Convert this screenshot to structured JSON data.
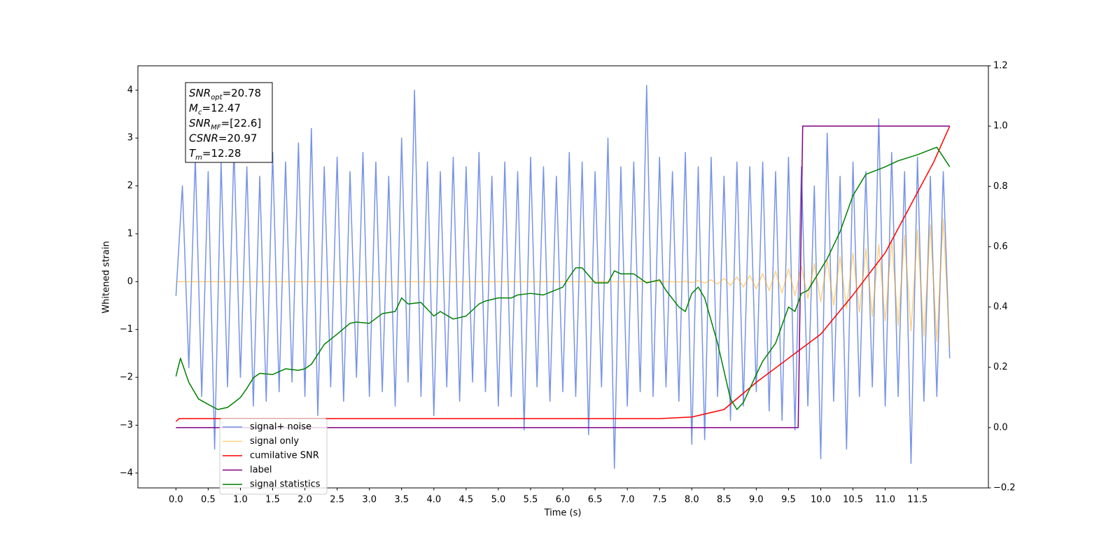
{
  "chart_data": {
    "type": "line",
    "xlabel": "Time (s)",
    "ylabel": "Whitened strain",
    "xlim": [
      -0.59,
      12.6
    ],
    "ylim": [
      -4.31,
      4.51
    ],
    "y2lim": [
      -0.2,
      1.2
    ],
    "xticks": [
      {
        "value": 0,
        "label": "0.0"
      },
      {
        "value": 0.5,
        "label": "0.5"
      },
      {
        "value": 1,
        "label": "1.0"
      },
      {
        "value": 1.5,
        "label": "1.5"
      },
      {
        "value": 2,
        "label": "2.0"
      },
      {
        "value": 2.5,
        "label": "2.5"
      },
      {
        "value": 3,
        "label": "3.0"
      },
      {
        "value": 3.5,
        "label": "3.5"
      },
      {
        "value": 4,
        "label": "4.0"
      },
      {
        "value": 4.5,
        "label": "4.5"
      },
      {
        "value": 5,
        "label": "5.0"
      },
      {
        "value": 5.5,
        "label": "5.5"
      },
      {
        "value": 6,
        "label": "6.0"
      },
      {
        "value": 6.5,
        "label": "6.5"
      },
      {
        "value": 7,
        "label": "7.0"
      },
      {
        "value": 7.5,
        "label": "7.5"
      },
      {
        "value": 8,
        "label": "8.0"
      },
      {
        "value": 8.5,
        "label": "8.5"
      },
      {
        "value": 9,
        "label": "9.0"
      },
      {
        "value": 9.5,
        "label": "9.5"
      },
      {
        "value": 10,
        "label": "10.0"
      },
      {
        "value": 10.5,
        "label": "10.5"
      },
      {
        "value": 11,
        "label": "11.0"
      },
      {
        "value": 11.5,
        "label": "11.5"
      }
    ],
    "yticks": [
      {
        "value": -4,
        "label": "−4"
      },
      {
        "value": -3,
        "label": "−3"
      },
      {
        "value": -2,
        "label": "−2"
      },
      {
        "value": -1,
        "label": "−1"
      },
      0,
      1,
      2,
      3,
      4
    ],
    "y2ticks": [
      {
        "value": -0.2,
        "label": "−0.2"
      },
      {
        "value": 0,
        "label": "0.0"
      },
      0.2,
      0.4,
      0.6,
      0.8,
      {
        "value": 1,
        "label": "1.0"
      },
      1.2
    ],
    "legend": "lower left",
    "annotations": [
      {
        "base": "SNR",
        "sub": "opt",
        "rest": "=20.78"
      },
      {
        "base": "M",
        "sub": "c",
        "rest": "=12.47"
      },
      {
        "base": "SNR",
        "sub": "MF",
        "rest": "=[22.6]"
      },
      {
        "base": "CSNR",
        "sub": null,
        "rest": "=20.97"
      },
      {
        "base": "T",
        "sub": "m",
        "rest": "=12.28"
      }
    ],
    "x": [
      0,
      0.1,
      0.2,
      0.3,
      0.4,
      0.5,
      0.6,
      0.7,
      0.8,
      0.9,
      1,
      1.1,
      1.2,
      1.3,
      1.4,
      1.5,
      1.6,
      1.7,
      1.8,
      1.9,
      2,
      2.1,
      2.2,
      2.3,
      2.4,
      2.5,
      2.6,
      2.7,
      2.8,
      2.9,
      3,
      3.1,
      3.2,
      3.3,
      3.4,
      3.5,
      3.6,
      3.7,
      3.8,
      3.9,
      4,
      4.1,
      4.2,
      4.3,
      4.4,
      4.5,
      4.6,
      4.7,
      4.8,
      4.9,
      5,
      5.1,
      5.2,
      5.3,
      5.4,
      5.5,
      5.6,
      5.7,
      5.8,
      5.9,
      6,
      6.1,
      6.2,
      6.3,
      6.4,
      6.5,
      6.6,
      6.7,
      6.8,
      6.9,
      7,
      7.1,
      7.2,
      7.3,
      7.4,
      7.5,
      7.6,
      7.7,
      7.8,
      7.9,
      8,
      8.1,
      8.2,
      8.3,
      8.4,
      8.5,
      8.6,
      8.7,
      8.8,
      8.9,
      9,
      9.1,
      9.2,
      9.3,
      9.4,
      9.5,
      9.6,
      9.7,
      9.8,
      9.9,
      10,
      10.1,
      10.2,
      10.3,
      10.4,
      10.5,
      10.6,
      10.7,
      10.8,
      10.9,
      11,
      11.1,
      11.2,
      11.3,
      11.4,
      11.5,
      11.6,
      11.7,
      11.8,
      11.9,
      12
    ],
    "series": [
      {
        "name": "signal+ noise",
        "color": "#7793e8",
        "axis": "y",
        "values": [
          -0.3,
          2.0,
          -1.8,
          2.6,
          -2.4,
          2.3,
          -3.5,
          2.5,
          -2.2,
          2.8,
          -2.0,
          2.4,
          -2.6,
          2.2,
          -2.5,
          2.7,
          -2.3,
          2.5,
          -2.1,
          2.9,
          -2.4,
          3.2,
          -2.8,
          2.4,
          -2.2,
          2.6,
          -2.5,
          2.3,
          -2.0,
          2.7,
          -2.4,
          2.5,
          -2.3,
          2.2,
          -2.6,
          3.0,
          -2.1,
          4.0,
          -2.4,
          2.5,
          -2.8,
          2.3,
          -2.2,
          2.6,
          -2.5,
          2.4,
          -2.1,
          2.7,
          -2.3,
          2.2,
          -2.6,
          2.5,
          -2.4,
          2.3,
          -3.1,
          2.6,
          -2.2,
          2.4,
          -2.5,
          2.2,
          -2.3,
          2.7,
          -2.4,
          2.5,
          -3.2,
          2.3,
          -2.2,
          3.0,
          -3.9,
          2.4,
          -2.6,
          2.5,
          -2.3,
          4.1,
          -2.4,
          2.6,
          -2.2,
          2.3,
          -2.5,
          2.7,
          -3.4,
          2.4,
          -3.3,
          2.6,
          -2.4,
          2.2,
          -2.9,
          2.5,
          -2.6,
          2.4,
          -2.3,
          2.5,
          -2.7,
          2.3,
          -2.9,
          2.6,
          -3.1,
          2.4,
          -2.6,
          2.0,
          -3.7,
          3.1,
          -2.5,
          2.2,
          -3.5,
          2.5,
          -2.4,
          2.3,
          -2.2,
          3.4,
          -2.6,
          2.7,
          -2.4,
          2.3,
          -3.8,
          2.6,
          -2.5,
          2.2,
          -2.4,
          2.3,
          -1.6
        ]
      },
      {
        "name": "signal only",
        "color": "#ffa500",
        "axis": "y",
        "values": [
          0,
          0,
          0,
          0,
          0,
          0,
          0,
          0,
          0,
          0,
          0,
          0,
          0,
          0,
          0,
          0,
          0,
          0,
          0,
          0,
          0,
          0,
          0,
          0,
          0,
          0,
          0,
          0,
          0,
          0,
          0,
          0,
          0,
          0,
          0,
          0,
          0,
          0,
          0,
          0,
          0,
          0,
          0,
          0,
          0,
          0,
          0,
          0,
          0,
          0,
          0,
          0,
          0,
          0,
          0,
          0,
          0,
          0,
          0,
          0,
          0,
          0,
          0,
          0,
          0,
          0,
          0,
          0,
          0,
          0,
          0,
          0,
          0,
          0,
          0,
          0,
          0,
          0,
          -0.01,
          0.01,
          -0.02,
          0.02,
          -0.03,
          0.04,
          -0.05,
          0.07,
          -0.08,
          0.1,
          -0.11,
          0.13,
          -0.15,
          0.17,
          -0.19,
          0.22,
          -0.24,
          0.27,
          -0.29,
          0.32,
          -0.35,
          0.38,
          -0.42,
          0.45,
          -0.49,
          0.52,
          -0.56,
          0.6,
          -0.64,
          0.69,
          -0.73,
          0.78,
          -0.82,
          0.87,
          -0.92,
          0.97,
          -1.03,
          1.08,
          -1.14,
          1.19,
          -1.25,
          1.31,
          -1.35
        ]
      },
      {
        "name": "cumilative SNR",
        "color": "#ff0000",
        "axis": "y2",
        "x": [
          0,
          0.05,
          2,
          4,
          6,
          7.5,
          8,
          8.5,
          9,
          9.5,
          10,
          10.5,
          11,
          11.5,
          11.75,
          12
        ],
        "values": [
          0.02,
          0.03,
          0.03,
          0.03,
          0.03,
          0.03,
          0.035,
          0.06,
          0.15,
          0.23,
          0.31,
          0.44,
          0.58,
          0.78,
          0.88,
          1.0
        ]
      },
      {
        "name": "label",
        "color": "#800080",
        "axis": "y2",
        "x": [
          0,
          9.65,
          9.72,
          12
        ],
        "values": [
          0,
          0,
          1,
          1
        ]
      },
      {
        "name": "signal statistics",
        "color": "#008000",
        "axis": "y2",
        "x": [
          0,
          0.07,
          0.2,
          0.35,
          0.5,
          0.65,
          0.8,
          0.9,
          1.0,
          1.1,
          1.2,
          1.3,
          1.5,
          1.7,
          1.9,
          2.0,
          2.1,
          2.3,
          2.5,
          2.7,
          2.8,
          3.0,
          3.2,
          3.4,
          3.5,
          3.6,
          3.8,
          4.0,
          4.1,
          4.3,
          4.5,
          4.7,
          4.8,
          5.0,
          5.2,
          5.3,
          5.5,
          5.7,
          6.0,
          6.1,
          6.2,
          6.3,
          6.5,
          6.7,
          6.8,
          6.9,
          7.1,
          7.3,
          7.5,
          7.6,
          7.8,
          7.9,
          8.0,
          8.1,
          8.2,
          8.4,
          8.6,
          8.7,
          8.8,
          9.0,
          9.1,
          9.3,
          9.5,
          9.6,
          9.7,
          9.8,
          9.9,
          10.1,
          10.3,
          10.5,
          10.7,
          11.0,
          11.2,
          11.5,
          11.8,
          12.0
        ],
        "values": [
          0.17,
          0.23,
          0.15,
          0.095,
          0.077,
          0.06,
          0.067,
          0.083,
          0.1,
          0.13,
          0.165,
          0.18,
          0.176,
          0.195,
          0.19,
          0.195,
          0.21,
          0.276,
          0.31,
          0.346,
          0.35,
          0.346,
          0.378,
          0.385,
          0.43,
          0.41,
          0.415,
          0.37,
          0.385,
          0.36,
          0.37,
          0.41,
          0.42,
          0.43,
          0.43,
          0.44,
          0.445,
          0.44,
          0.466,
          0.5,
          0.53,
          0.53,
          0.48,
          0.48,
          0.52,
          0.51,
          0.51,
          0.48,
          0.49,
          0.455,
          0.4,
          0.385,
          0.445,
          0.466,
          0.43,
          0.28,
          0.095,
          0.06,
          0.083,
          0.176,
          0.22,
          0.28,
          0.4,
          0.385,
          0.445,
          0.455,
          0.49,
          0.56,
          0.65,
          0.77,
          0.84,
          0.865,
          0.885,
          0.905,
          0.93,
          0.865
        ]
      }
    ]
  }
}
